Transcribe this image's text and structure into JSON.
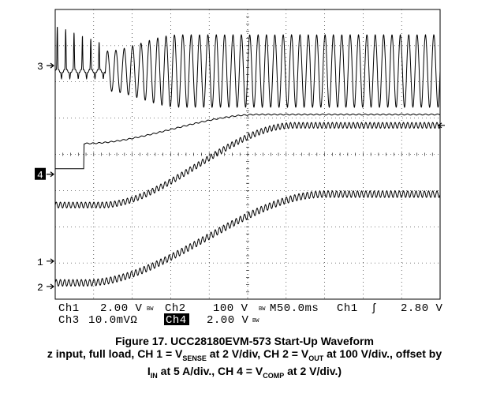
{
  "chart_data": {
    "type": "line",
    "title": "Figure 17. UCC28180EVM-573 Start-Up Waveform",
    "caption_line2_prefix": "z input, full load, CH 1 = V",
    "caption_line2_sense_sub": "SENSE",
    "caption_line2_mid": " at 2 V/div, CH 2 = V",
    "caption_line2_out_sub": "OUT",
    "caption_line2_suffix": " at 100 V/div., offset by",
    "caption_line3_prefix": "I",
    "caption_line3_in_sub": "IN",
    "caption_line3_mid": " at 5 A/div., CH 4 = V",
    "caption_line3_comp_sub": "COMP",
    "caption_line3_suffix": " at 2 V/div.)",
    "grid": true,
    "divisions": {
      "x": 10,
      "y": 8
    },
    "channel_markers": [
      {
        "label": "3",
        "level_div": 6.45
      },
      {
        "label": "4",
        "level_div": 3.45,
        "highlight": true
      },
      {
        "label": "1",
        "level_div": 1.05
      },
      {
        "label": "2",
        "level_div": 0.35
      }
    ],
    "series": [
      {
        "channel": "CH3",
        "shape": "AC inrush current burst; large spikes at start, then steady ~1.9 div pk-pk oscillation",
        "center_div": 6.3
      },
      {
        "channel": "CH4",
        "shape": "flat at 3.6 div until 0.8 div time, steps to 4.3 div, ramps to 5.1 div by 5.2 div time, then flat",
        "center_div": 4.6
      },
      {
        "channel": "CH2",
        "shape": "rippled ramp from 2.6 div to 4.8 div",
        "center_div": 3.7
      },
      {
        "channel": "CH1",
        "shape": "rippled ramp from 0.4 div to 2.9 div",
        "center_div": 1.6
      }
    ],
    "status": {
      "ch1": "Ch1",
      "ch1_scale": "2.00 V",
      "bw1": "BW",
      "ch2": "Ch2",
      "ch2_scale": "100 V",
      "bw2": "BW",
      "timebase": "M50.0ms",
      "trig_ch": "Ch1",
      "trig_symbol": "ʃ",
      "trig_level": "2.80 V",
      "ch3": "Ch3",
      "ch3_scale": "10.0mVΩ",
      "ch4": "Ch4",
      "ch4_scale": "2.00 V",
      "bw4": "BW"
    }
  }
}
